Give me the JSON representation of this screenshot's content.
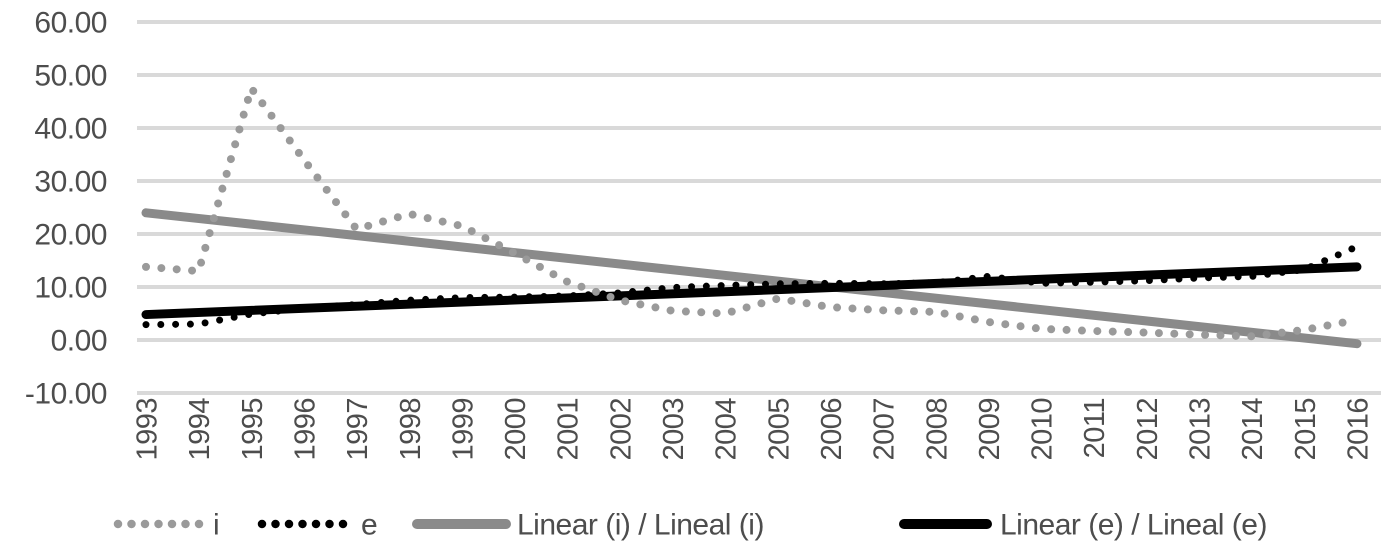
{
  "chart_data": {
    "type": "line",
    "title": "",
    "xlabel": "",
    "ylabel": "",
    "grid": "horizontal",
    "legend_position": "bottom",
    "ylim": [
      -10,
      60
    ],
    "ytick_step": 10,
    "ytick_labels": [
      "60.00",
      "50.00",
      "40.00",
      "30.00",
      "20.00",
      "10.00",
      "0.00",
      "-10.00"
    ],
    "ytick_values": [
      60,
      50,
      40,
      30,
      20,
      10,
      0,
      -10
    ],
    "categories": [
      1993,
      1994,
      1995,
      1996,
      1997,
      1998,
      1999,
      2000,
      2001,
      2002,
      2003,
      2004,
      2005,
      2006,
      2007,
      2008,
      2009,
      2010,
      2011,
      2012,
      2013,
      2014,
      2015,
      2016
    ],
    "series": [
      {
        "name": "i",
        "style": "dotted",
        "color": "#9a9a9a",
        "values": [
          13.8,
          13.0,
          47.5,
          34.0,
          20.9,
          23.8,
          21.5,
          16.4,
          11.0,
          7.5,
          5.5,
          5.0,
          7.8,
          6.2,
          5.6,
          5.3,
          3.4,
          2.1,
          1.7,
          1.4,
          1.0,
          0.7,
          1.9,
          3.8
        ]
      },
      {
        "name": "e",
        "style": "dotted",
        "color": "#000000",
        "values": [
          2.9,
          3.0,
          4.9,
          6.0,
          6.7,
          7.5,
          8.0,
          8.1,
          8.3,
          8.9,
          9.9,
          10.3,
          10.6,
          10.7,
          10.6,
          10.8,
          12.0,
          10.7,
          10.9,
          11.2,
          11.7,
          12.0,
          13.3,
          17.6
        ]
      },
      {
        "name": "Linear (i) / Lineal (i)",
        "style": "solid-trend",
        "color": "#8a8a8a",
        "trend": {
          "start_year": 1993,
          "start_value": 24.0,
          "end_year": 2016,
          "end_value": -0.7
        }
      },
      {
        "name": "Linear (e) / Lineal (e)",
        "style": "solid-trend",
        "color": "#000000",
        "trend": {
          "start_year": 1993,
          "start_value": 4.8,
          "end_year": 2016,
          "end_value": 13.8
        }
      }
    ],
    "legend": [
      {
        "label": "i",
        "swatch": "dotted",
        "color": "#9a9a9a"
      },
      {
        "label": "e",
        "swatch": "dotted",
        "color": "#000000"
      },
      {
        "label": "Linear (i) / Lineal (i)",
        "swatch": "line",
        "color": "#8a8a8a"
      },
      {
        "label": "Linear (e) / Lineal (e)",
        "swatch": "line",
        "color": "#000000"
      }
    ],
    "colors": {
      "gridline": "#d9d9d9",
      "axis_text": "#4d4d4d",
      "background": "#ffffff"
    }
  }
}
